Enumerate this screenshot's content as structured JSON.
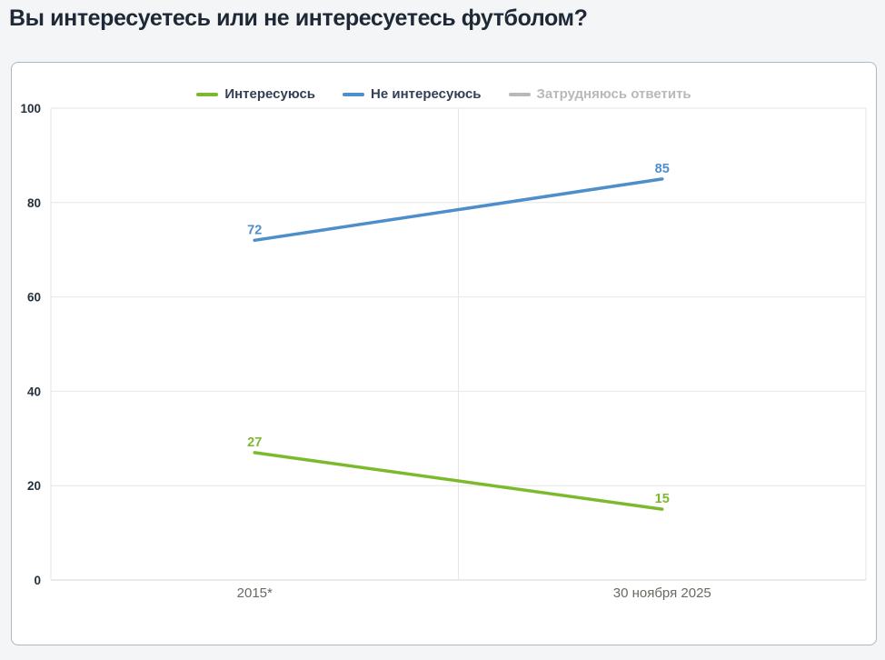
{
  "page": {
    "title": "Вы интересуетесь или не интересуетесь футболом?"
  },
  "colors": {
    "accent_green": "#7cba2d",
    "accent_blue": "#4e8ecb",
    "legend_text": "#333f54",
    "legend_disabled": "#b9b9b9",
    "grid": "#e6e6e6",
    "axis": "#d6d6d6",
    "ytick_text": "#26313d",
    "xtick_text": "#6c6862",
    "card_border": "#a7b9c8",
    "card_bg": "#ffffff",
    "page_bg": "#f4f5f7"
  },
  "chart_data": {
    "type": "line",
    "title": "Вы интересуетесь или не интересуетесь футболом?",
    "categories": [
      "2015*",
      "30 ноября 2025"
    ],
    "series": [
      {
        "name": "Интересуюсь",
        "values": [
          27,
          15
        ],
        "color": "#7cba2d",
        "visible": true
      },
      {
        "name": "Не интересуюсь",
        "values": [
          72,
          85
        ],
        "color": "#4e8ecb",
        "visible": true
      },
      {
        "name": "Затрудняюсь ответить",
        "values": null,
        "color": "#b0b0b0",
        "visible": false
      }
    ],
    "ylim": [
      0,
      100
    ],
    "yticks": [
      0,
      20,
      40,
      60,
      80,
      100
    ],
    "grid": true,
    "legend_position": "top",
    "data_labels": true,
    "xlabel": "",
    "ylabel": ""
  }
}
